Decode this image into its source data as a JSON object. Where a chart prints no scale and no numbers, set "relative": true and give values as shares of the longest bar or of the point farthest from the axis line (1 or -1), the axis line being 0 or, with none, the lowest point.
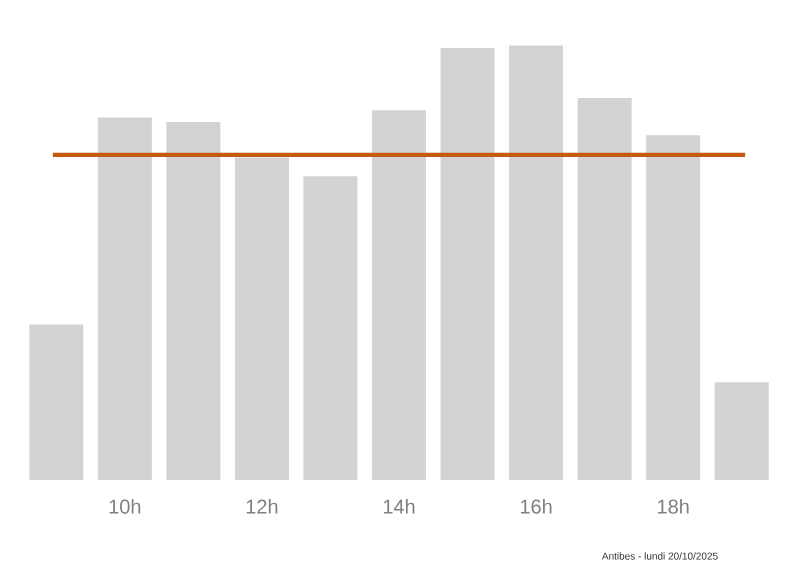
{
  "chart_data": {
    "type": "bar",
    "relative": true,
    "categories": [
      null,
      "10h",
      null,
      "12h",
      null,
      "14h",
      null,
      "16h",
      null,
      "18h",
      null
    ],
    "values": [
      0.358,
      0.834,
      0.824,
      0.742,
      0.699,
      0.851,
      0.994,
      1,
      0.879,
      0.793,
      0.225
    ],
    "color": "#d3d3d3",
    "ref_lines": [
      {
        "axis": "y",
        "value": 0.748,
        "color": "#c55a11"
      }
    ],
    "annotations": [
      "Antibes - lundi 20/10/2025"
    ]
  }
}
